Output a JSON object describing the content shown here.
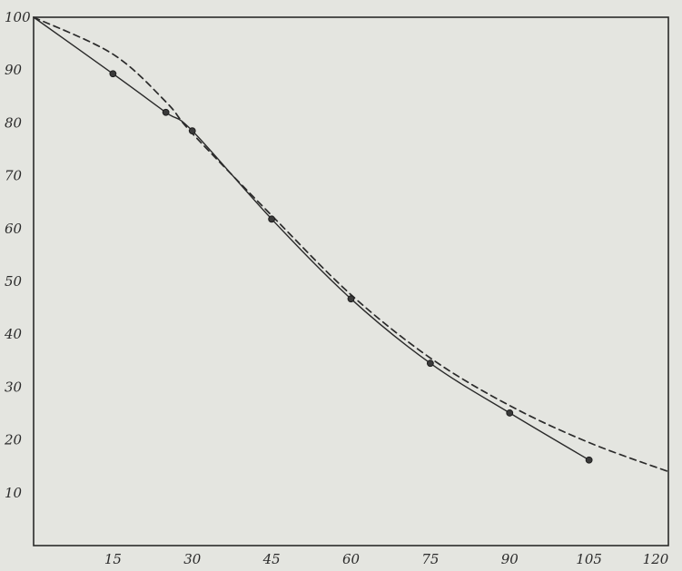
{
  "chart_data": {
    "type": "line",
    "title": "",
    "xlabel": "",
    "ylabel": "",
    "xlim": [
      0,
      120
    ],
    "ylim": [
      0,
      100
    ],
    "x_ticks": [
      15,
      30,
      45,
      60,
      75,
      90,
      105,
      120
    ],
    "y_ticks": [
      10,
      20,
      30,
      40,
      50,
      60,
      70,
      80,
      90,
      100
    ],
    "grid": false,
    "legend": "none",
    "series": [
      {
        "style": "solid",
        "markers": true,
        "color": "#2a2a2a",
        "points": [
          {
            "x": 0,
            "y": 100
          },
          {
            "x": 15,
            "y": 89.3
          },
          {
            "x": 25,
            "y": 82
          },
          {
            "x": 30,
            "y": 78.5
          },
          {
            "x": 45,
            "y": 61.8
          },
          {
            "x": 60,
            "y": 46.7
          },
          {
            "x": 75,
            "y": 34.5
          },
          {
            "x": 90,
            "y": 25.1
          },
          {
            "x": 105,
            "y": 16.2
          }
        ]
      },
      {
        "style": "dashed",
        "markers": false,
        "color": "#2a2a2a",
        "points": [
          {
            "x": 0,
            "y": 100
          },
          {
            "x": 15,
            "y": 93
          },
          {
            "x": 25,
            "y": 84
          },
          {
            "x": 30,
            "y": 78
          },
          {
            "x": 45,
            "y": 62.5
          },
          {
            "x": 60,
            "y": 47.5
          },
          {
            "x": 75,
            "y": 35.5
          },
          {
            "x": 90,
            "y": 26.5
          },
          {
            "x": 105,
            "y": 19.5
          },
          {
            "x": 120,
            "y": 14
          }
        ]
      }
    ]
  }
}
